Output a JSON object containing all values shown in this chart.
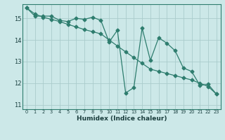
{
  "xlabel": "Humidex (Indice chaleur)",
  "bg_color": "#cce8e8",
  "grid_color": "#aacccc",
  "line_color": "#2e7d6e",
  "xlim": [
    -0.5,
    23.5
  ],
  "ylim": [
    10.8,
    15.65
  ],
  "yticks": [
    11,
    12,
    13,
    14,
    15
  ],
  "xticks": [
    0,
    1,
    2,
    3,
    4,
    5,
    6,
    7,
    8,
    9,
    10,
    11,
    12,
    13,
    14,
    15,
    16,
    17,
    18,
    19,
    20,
    21,
    22,
    23
  ],
  "curve1_x": [
    0,
    1,
    2,
    3,
    4,
    5,
    6,
    7,
    8,
    9,
    10,
    11,
    12,
    13,
    14,
    15,
    16,
    17,
    18,
    19,
    20,
    21,
    22,
    23
  ],
  "curve1_y": [
    15.48,
    15.1,
    15.1,
    15.1,
    14.9,
    14.85,
    15.0,
    14.95,
    15.05,
    14.9,
    13.9,
    14.45,
    11.55,
    11.8,
    14.55,
    13.05,
    14.1,
    13.85,
    13.5,
    12.7,
    12.55,
    11.9,
    11.95,
    11.5
  ],
  "curve2_x": [
    0,
    1,
    2,
    3,
    4,
    5,
    6,
    7,
    8,
    9,
    10,
    11,
    12,
    13,
    14,
    15,
    16,
    17,
    18,
    19,
    20,
    21,
    22,
    23
  ],
  "curve2_y": [
    15.48,
    15.2,
    15.05,
    14.95,
    14.85,
    14.72,
    14.6,
    14.48,
    14.38,
    14.28,
    14.0,
    13.72,
    13.45,
    13.18,
    12.92,
    12.65,
    12.55,
    12.45,
    12.35,
    12.25,
    12.15,
    12.0,
    11.85,
    11.5
  ],
  "markersize": 2.5
}
